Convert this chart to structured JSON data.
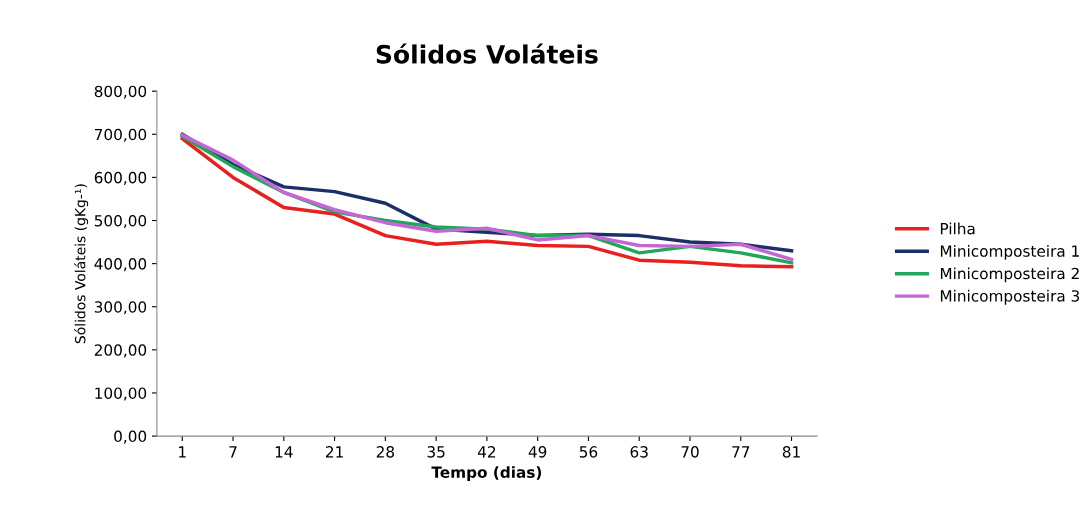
{
  "chart_data": {
    "type": "line",
    "title": "Sólidos Voláteis",
    "xlabel": "Tempo (dias)",
    "ylabel": "Sólidos Voláteis (gKg-¹)",
    "categories": [
      "1",
      "7",
      "14",
      "21",
      "28",
      "35",
      "42",
      "49",
      "56",
      "63",
      "70",
      "77",
      "81"
    ],
    "series": [
      {
        "name": "Pilha",
        "color": "#e8201e",
        "values": [
          690,
          600,
          530,
          515,
          465,
          445,
          452,
          442,
          440,
          408,
          403,
          395,
          393
        ]
      },
      {
        "name": "Minicomposteira 1",
        "color": "#1c2f66",
        "values": [
          700,
          630,
          578,
          567,
          540,
          480,
          473,
          465,
          468,
          465,
          450,
          445,
          430
        ]
      },
      {
        "name": "Minicomposteira 2",
        "color": "#21a65a",
        "values": [
          695,
          625,
          565,
          520,
          500,
          485,
          480,
          465,
          465,
          425,
          440,
          425,
          402
        ]
      },
      {
        "name": "Minicomposteira 3",
        "color": "#c466d6",
        "values": [
          698,
          640,
          565,
          525,
          495,
          475,
          482,
          455,
          465,
          442,
          440,
          445,
          410
        ]
      }
    ],
    "ylim": [
      0,
      800
    ],
    "yticks": [
      {
        "value": 0,
        "label": "0,00"
      },
      {
        "value": 100,
        "label": "100,00"
      },
      {
        "value": 200,
        "label": "200,00"
      },
      {
        "value": 300,
        "label": "300,00"
      },
      {
        "value": 400,
        "label": "400,00"
      },
      {
        "value": 500,
        "label": "500,00"
      },
      {
        "value": 600,
        "label": "600,00"
      },
      {
        "value": 700,
        "label": "700,00"
      },
      {
        "value": 800,
        "label": "800,00"
      }
    ],
    "grid": false,
    "legend": "right",
    "marker": "none",
    "line_style": "solid"
  }
}
